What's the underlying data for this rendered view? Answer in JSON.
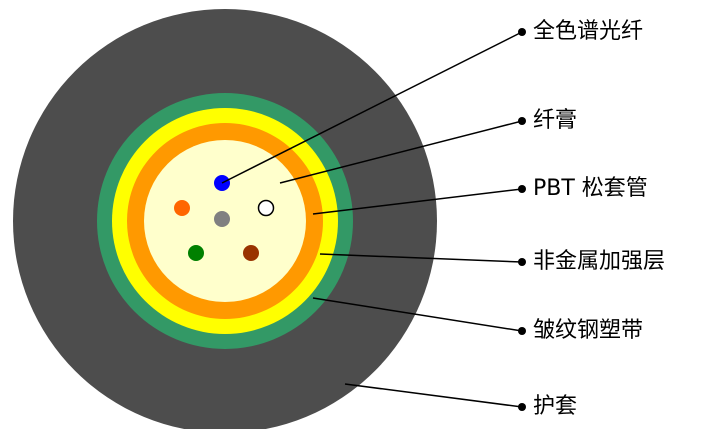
{
  "labels": [
    "全色谱光纤",
    "纤膏",
    "PBT 松套管",
    "非金属加强层",
    "皱纹钢塑带",
    "护套"
  ]
}
